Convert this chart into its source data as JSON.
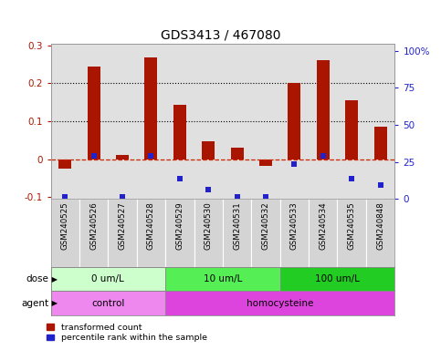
{
  "title": "GDS3413 / 467080",
  "samples": [
    "GSM240525",
    "GSM240526",
    "GSM240527",
    "GSM240528",
    "GSM240529",
    "GSM240530",
    "GSM240531",
    "GSM240532",
    "GSM240533",
    "GSM240534",
    "GSM240535",
    "GSM240848"
  ],
  "red_values": [
    -0.025,
    0.245,
    0.012,
    0.268,
    0.143,
    0.047,
    0.03,
    -0.018,
    0.202,
    0.262,
    0.155,
    0.085
  ],
  "blue_values_scaled": [
    0,
    27,
    0,
    27,
    12,
    5,
    0,
    0,
    22,
    27,
    12,
    8
  ],
  "red_color": "#aa1500",
  "blue_color": "#2222cc",
  "ylim_left": [
    -0.105,
    0.305
  ],
  "ylim_right": [
    0,
    105
  ],
  "yticks_left": [
    -0.1,
    0.0,
    0.1,
    0.2,
    0.3
  ],
  "ytick_labels_left": [
    "-0.1",
    "0",
    "0.1",
    "0.2",
    "0.3"
  ],
  "yticks_right": [
    0,
    25,
    50,
    75,
    100
  ],
  "ytick_labels_right": [
    "0",
    "25",
    "50",
    "75",
    "100%"
  ],
  "hlines": [
    0.1,
    0.2
  ],
  "dose_groups": [
    {
      "label": "0 um/L",
      "start": 0,
      "end": 4,
      "color": "#ccffcc"
    },
    {
      "label": "10 um/L",
      "start": 4,
      "end": 8,
      "color": "#55ee55"
    },
    {
      "label": "100 um/L",
      "start": 8,
      "end": 12,
      "color": "#22cc22"
    }
  ],
  "agent_groups": [
    {
      "label": "control",
      "start": 0,
      "end": 4,
      "color": "#ee88ee"
    },
    {
      "label": "homocysteine",
      "start": 4,
      "end": 12,
      "color": "#dd44dd"
    }
  ],
  "legend_red": "transformed count",
  "legend_blue": "percentile rank within the sample",
  "bg_color": "#ffffff",
  "plot_bg_color": "#e0e0e0",
  "zero_line_color": "#cc2200",
  "grid_color": "#000000"
}
